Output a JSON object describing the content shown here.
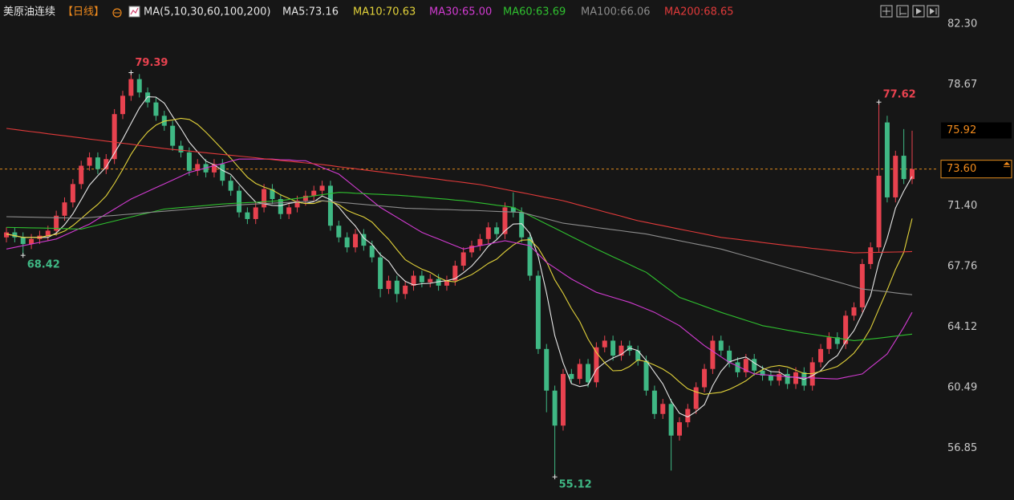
{
  "chart_data": {
    "type": "candlestick",
    "title": "美原油连续",
    "period": "【日线】",
    "ma_title": "MA(5,10,30,60,100,200)",
    "up_color": "#e8424f",
    "down_color": "#3fb884",
    "grid": false,
    "ylim": [
      54.6,
      83.75
    ],
    "yticks": [
      {
        "value": 82.3,
        "label": "82.30"
      },
      78.67,
      {
        "value": 71.4,
        "label": "71.40"
      },
      67.76,
      64.12,
      60.49,
      56.85
    ],
    "highlight_price": 75.92,
    "last_price": {
      "value": 73.6,
      "label": "73.60"
    },
    "open": [
      69.5,
      69.8,
      69.5,
      69.1,
      69.4,
      69.6,
      69.9,
      70.8,
      71.6,
      72.7,
      73.8,
      74.3,
      73.6,
      74.2,
      76.9,
      78.0,
      79.0,
      78.2,
      77.6,
      76.8,
      76.2,
      75.0,
      74.6,
      73.5,
      73.9,
      73.4,
      73.9,
      72.9,
      72.3,
      71.0,
      70.6,
      71.3,
      72.4,
      71.8,
      70.9,
      71.3,
      71.7,
      72.0,
      72.3,
      72.6,
      70.2,
      69.5,
      68.9,
      69.7,
      69.0,
      68.3,
      66.4,
      66.9,
      66.1,
      66.6,
      67.2,
      66.8,
      67.0,
      66.6,
      66.9,
      67.8,
      68.6,
      69.0,
      69.4,
      70.1,
      69.7,
      71.3,
      71.0,
      69.5,
      67.2,
      62.8,
      60.3,
      58.2,
      61.3,
      61.0,
      61.9,
      60.8,
      62.9,
      63.3,
      62.4,
      63.0,
      62.7,
      62.1,
      60.3,
      58.9,
      59.5,
      57.6,
      58.4,
      59.2,
      60.5,
      61.6,
      63.3,
      62.7,
      62.0,
      61.4,
      62.2,
      61.5,
      61.2,
      60.9,
      61.3,
      60.7,
      61.4,
      60.6,
      62.0,
      62.8,
      63.5,
      63.1,
      64.8,
      65.3,
      67.9,
      68.9,
      76.4,
      71.9,
      74.4,
      73.0
    ],
    "high": [
      70.1,
      70.1,
      69.8,
      69.7,
      69.9,
      70.2,
      71.1,
      71.9,
      73.0,
      74.1,
      74.6,
      74.6,
      74.5,
      77.2,
      78.3,
      79.39,
      79.3,
      78.5,
      77.9,
      77.1,
      76.5,
      75.3,
      74.9,
      74.2,
      74.2,
      74.2,
      74.2,
      73.2,
      72.6,
      71.3,
      71.6,
      72.7,
      72.7,
      72.1,
      71.6,
      72.0,
      72.3,
      72.6,
      72.9,
      72.9,
      70.5,
      69.8,
      70.0,
      70.0,
      69.3,
      68.6,
      67.2,
      67.2,
      66.9,
      67.5,
      67.5,
      67.3,
      67.3,
      67.2,
      68.1,
      68.9,
      69.3,
      69.7,
      70.4,
      70.4,
      71.6,
      72.2,
      71.3,
      69.8,
      67.5,
      63.1,
      60.6,
      61.6,
      61.6,
      62.2,
      62.2,
      63.2,
      63.6,
      63.6,
      63.3,
      63.3,
      63.0,
      62.4,
      60.6,
      59.8,
      59.8,
      58.7,
      59.5,
      60.8,
      61.9,
      63.6,
      63.6,
      63.0,
      62.3,
      62.5,
      62.5,
      61.8,
      61.5,
      61.6,
      61.6,
      61.7,
      61.7,
      62.3,
      63.1,
      63.8,
      63.8,
      65.1,
      65.6,
      68.2,
      69.2,
      77.62,
      76.8,
      74.7,
      76.0,
      75.9
    ],
    "low": [
      69.2,
      69.2,
      68.42,
      68.8,
      69.1,
      69.3,
      69.6,
      70.5,
      71.3,
      72.4,
      73.5,
      73.3,
      73.3,
      73.9,
      76.6,
      77.7,
      77.9,
      77.3,
      76.5,
      75.9,
      74.7,
      74.3,
      73.2,
      73.2,
      73.1,
      73.1,
      72.6,
      72.0,
      70.7,
      70.3,
      70.3,
      71.0,
      71.5,
      70.6,
      70.6,
      71.0,
      71.4,
      71.7,
      72.0,
      69.9,
      69.2,
      68.6,
      68.6,
      68.7,
      68.0,
      65.9,
      66.1,
      65.6,
      65.8,
      66.3,
      66.5,
      66.5,
      66.3,
      66.3,
      66.6,
      67.5,
      68.3,
      68.7,
      69.1,
      69.4,
      69.4,
      70.7,
      69.2,
      66.9,
      62.5,
      59.0,
      55.12,
      57.9,
      60.7,
      60.7,
      60.5,
      60.5,
      62.6,
      62.1,
      62.1,
      62.4,
      61.8,
      60.0,
      58.6,
      58.6,
      55.5,
      57.3,
      58.1,
      58.9,
      60.2,
      61.3,
      62.4,
      61.7,
      61.1,
      61.1,
      61.2,
      60.9,
      60.6,
      60.6,
      60.4,
      60.4,
      60.3,
      60.3,
      61.7,
      62.5,
      62.8,
      62.8,
      64.5,
      65.0,
      67.6,
      68.6,
      71.6,
      71.6,
      72.7,
      72.7
    ],
    "close": [
      69.8,
      69.5,
      69.1,
      69.4,
      69.6,
      69.9,
      70.8,
      71.6,
      72.7,
      73.8,
      74.3,
      73.6,
      74.2,
      76.9,
      78.0,
      79.0,
      78.2,
      77.6,
      76.8,
      76.2,
      75.0,
      74.6,
      73.5,
      73.9,
      73.4,
      73.9,
      72.9,
      72.3,
      71.0,
      70.6,
      71.3,
      72.4,
      71.8,
      70.9,
      71.3,
      71.7,
      72.0,
      72.3,
      72.6,
      70.2,
      69.5,
      68.9,
      69.7,
      69.0,
      68.3,
      66.4,
      66.9,
      66.1,
      66.6,
      67.2,
      66.8,
      67.0,
      66.6,
      66.9,
      67.8,
      68.6,
      69.0,
      69.4,
      70.1,
      69.7,
      71.3,
      71.0,
      69.5,
      67.2,
      62.8,
      60.3,
      58.2,
      61.3,
      61.0,
      61.9,
      60.8,
      62.9,
      63.3,
      62.4,
      63.0,
      62.7,
      62.1,
      60.3,
      58.9,
      59.5,
      57.6,
      58.4,
      59.2,
      60.5,
      61.6,
      63.3,
      62.7,
      62.0,
      61.4,
      62.2,
      61.5,
      61.2,
      60.9,
      61.3,
      60.7,
      61.4,
      60.6,
      62.0,
      62.8,
      63.5,
      63.1,
      64.8,
      65.3,
      67.9,
      68.9,
      73.2,
      71.9,
      74.4,
      73.0,
      73.6
    ],
    "series": [
      {
        "name": "MA5:73.16",
        "color": "#e6e6e6",
        "values": [
          69.7,
          69.6,
          69.5,
          69.5,
          69.5,
          69.5,
          69.76,
          70.26,
          70.92,
          71.76,
          72.64,
          73.2,
          73.72,
          74.56,
          75.4,
          76.34,
          77.26,
          77.94,
          77.92,
          77.56,
          76.76,
          76.04,
          75.22,
          74.64,
          74.08,
          73.86,
          73.52,
          73.28,
          72.7,
          72.14,
          71.62,
          71.52,
          71.42,
          71.4,
          71.54,
          71.62,
          71.54,
          71.64,
          71.98,
          71.76,
          71.32,
          70.7,
          70.18,
          69.46,
          69.08,
          68.46,
          68.06,
          67.34,
          66.86,
          66.64,
          66.72,
          66.74,
          66.84,
          66.9,
          67.02,
          67.38,
          67.78,
          68.34,
          68.98,
          69.36,
          69.9,
          70.3,
          70.32,
          69.74,
          68.36,
          66.16,
          63.6,
          61.96,
          60.72,
          60.54,
          60.64,
          61.58,
          61.98,
          62.26,
          62.48,
          62.86,
          62.7,
          62.1,
          61.4,
          60.7,
          59.68,
          58.94,
          58.72,
          59.04,
          59.46,
          60.6,
          61.46,
          62.02,
          62.2,
          62.32,
          61.96,
          61.66,
          61.44,
          61.42,
          61.12,
          61.1,
          60.98,
          61.2,
          61.5,
          62.06,
          62.4,
          63.24,
          63.9,
          64.92,
          66.0,
          68.02,
          69.44,
          71.26,
          72.28,
          73.16
        ]
      },
      {
        "name": "MA10:70.63",
        "color": "#e2d23a",
        "values": [
          69.7,
          69.6,
          69.5,
          69.5,
          69.5,
          69.6,
          69.68,
          69.88,
          70.21,
          70.63,
          71.07,
          71.48,
          71.99,
          72.74,
          73.58,
          74.49,
          75.23,
          75.83,
          76.24,
          76.48,
          76.55,
          76.65,
          76.58,
          76.28,
          75.82,
          75.31,
          74.78,
          74.25,
          73.67,
          73.11,
          72.74,
          72.52,
          72.35,
          72.05,
          71.84,
          71.62,
          71.53,
          71.53,
          71.69,
          71.65,
          71.47,
          71.12,
          70.91,
          70.72,
          70.42,
          69.89,
          69.38,
          68.76,
          68.16,
          67.86,
          67.59,
          67.4,
          67.09,
          66.88,
          66.83,
          67.05,
          67.26,
          67.59,
          67.94,
          68.19,
          68.64,
          69.04,
          69.33,
          69.36,
          68.86,
          68.03,
          66.95,
          66.14,
          65.23,
          64.45,
          63.4,
          62.59,
          61.97,
          61.49,
          61.51,
          61.75,
          62.14,
          62.04,
          61.83,
          61.59,
          61.27,
          60.82,
          60.41,
          60.22,
          60.08,
          60.14,
          60.2,
          60.37,
          60.62,
          60.89,
          61.28,
          61.56,
          61.73,
          61.81,
          61.72,
          61.53,
          61.32,
          61.32,
          61.46,
          61.59,
          61.75,
          62.11,
          62.55,
          63.21,
          64.03,
          65.21,
          66.34,
          67.58,
          68.6,
          70.63
        ]
      },
      {
        "name": "MA30:65.00",
        "color": "#d23bd2",
        "values": [
          68.8,
          68.9,
          69.0,
          69.1,
          69.2,
          69.3,
          69.4,
          69.63,
          69.85,
          70.08,
          70.3,
          70.6,
          70.9,
          71.2,
          71.5,
          71.8,
          72.03,
          72.26,
          72.49,
          72.71,
          72.94,
          73.17,
          73.4,
          73.53,
          73.67,
          73.8,
          73.93,
          74.07,
          74.2,
          74.2,
          74.2,
          74.2,
          74.2,
          74.15,
          74.15,
          74.1,
          74.1,
          73.9,
          73.7,
          73.5,
          73.3,
          72.9,
          72.5,
          72.1,
          71.7,
          71.3,
          71.0,
          70.7,
          70.4,
          70.1,
          69.8,
          69.6,
          69.4,
          69.2,
          69.0,
          68.8,
          68.9,
          69.0,
          69.1,
          69.2,
          69.3,
          69.2,
          69.1,
          69.0,
          68.5,
          68.0,
          67.67,
          67.33,
          67.0,
          66.73,
          66.47,
          66.2,
          66.05,
          65.9,
          65.75,
          65.6,
          65.4,
          65.2,
          65.0,
          64.73,
          64.47,
          64.2,
          63.8,
          63.4,
          63.0,
          62.67,
          62.33,
          62.0,
          61.77,
          61.53,
          61.3,
          61.26,
          61.22,
          61.18,
          61.14,
          61.1,
          61.08,
          61.06,
          61.04,
          61.02,
          61.0,
          61.1,
          61.2,
          61.3,
          61.7,
          62.1,
          62.5,
          63.3,
          64.1,
          65.0
        ]
      },
      {
        "name": "MA60:63.69",
        "color": "#2fc02f",
        "values": [
          70.1,
          70.09,
          70.08,
          70.07,
          70.06,
          70.05,
          70.04,
          70.03,
          70.01,
          70.0,
          70.12,
          70.24,
          70.36,
          70.48,
          70.6,
          70.72,
          70.84,
          70.96,
          71.08,
          71.2,
          71.24,
          71.29,
          71.33,
          71.37,
          71.41,
          71.46,
          71.5,
          71.53,
          71.56,
          71.59,
          71.61,
          71.64,
          71.67,
          71.7,
          71.77,
          71.84,
          71.91,
          71.99,
          72.06,
          72.13,
          72.2,
          72.18,
          72.15,
          72.13,
          72.1,
          72.08,
          72.05,
          72.03,
          72.0,
          71.96,
          71.91,
          71.87,
          71.83,
          71.79,
          71.74,
          71.7,
          71.63,
          71.57,
          71.5,
          71.43,
          71.37,
          71.3,
          71.05,
          70.8,
          70.55,
          70.3,
          70.05,
          69.8,
          69.55,
          69.3,
          69.05,
          68.8,
          68.57,
          68.33,
          68.1,
          67.87,
          67.63,
          67.4,
          67.03,
          66.65,
          66.28,
          65.9,
          65.72,
          65.54,
          65.36,
          65.18,
          65.0,
          64.84,
          64.68,
          64.52,
          64.36,
          64.2,
          64.11,
          64.02,
          63.93,
          63.84,
          63.75,
          63.68,
          63.6,
          63.53,
          63.45,
          63.38,
          63.3,
          63.35,
          63.4,
          63.45,
          63.51,
          63.57,
          63.63,
          63.69
        ]
      },
      {
        "name": "MA100:66.06",
        "color": "#8c8c8c",
        "values": [
          70.74,
          70.73,
          70.72,
          70.71,
          70.7,
          70.69,
          70.68,
          70.67,
          70.66,
          70.65,
          70.69,
          70.73,
          70.78,
          70.82,
          70.86,
          70.9,
          70.94,
          70.99,
          71.03,
          71.07,
          71.11,
          71.15,
          71.2,
          71.24,
          71.28,
          71.32,
          71.36,
          71.41,
          71.45,
          71.48,
          71.5,
          71.53,
          71.55,
          71.58,
          71.6,
          71.63,
          71.65,
          71.68,
          71.7,
          71.66,
          71.61,
          71.57,
          71.52,
          71.48,
          71.43,
          71.39,
          71.34,
          71.3,
          71.25,
          71.23,
          71.22,
          71.2,
          71.18,
          71.17,
          71.15,
          71.13,
          71.12,
          71.1,
          71.08,
          71.06,
          71.04,
          71.02,
          71.0,
          70.87,
          70.74,
          70.61,
          70.48,
          70.35,
          70.29,
          70.22,
          70.16,
          70.09,
          70.03,
          69.96,
          69.9,
          69.83,
          69.77,
          69.7,
          69.6,
          69.5,
          69.4,
          69.3,
          69.2,
          69.1,
          69.0,
          68.9,
          68.8,
          68.66,
          68.52,
          68.38,
          68.24,
          68.1,
          67.96,
          67.82,
          67.68,
          67.54,
          67.4,
          67.26,
          67.11,
          66.97,
          66.83,
          66.69,
          66.54,
          66.4,
          66.34,
          66.29,
          66.23,
          66.17,
          66.11,
          66.06
        ]
      },
      {
        "name": "MA200:68.65",
        "color": "#e03a3a",
        "values": [
          76.04,
          75.98,
          75.91,
          75.85,
          75.79,
          75.72,
          75.66,
          75.6,
          75.53,
          75.47,
          75.4,
          75.34,
          75.28,
          75.21,
          75.15,
          75.09,
          75.02,
          74.96,
          74.9,
          74.83,
          74.78,
          74.73,
          74.68,
          74.63,
          74.58,
          74.53,
          74.48,
          74.43,
          74.38,
          74.33,
          74.28,
          74.22,
          74.17,
          74.12,
          74.07,
          74.02,
          73.97,
          73.92,
          73.87,
          73.81,
          73.74,
          73.68,
          73.62,
          73.55,
          73.49,
          73.43,
          73.36,
          73.3,
          73.24,
          73.17,
          73.11,
          73.05,
          72.99,
          72.92,
          72.86,
          72.8,
          72.73,
          72.67,
          72.57,
          72.48,
          72.38,
          72.28,
          72.19,
          72.09,
          71.99,
          71.89,
          71.8,
          71.7,
          71.57,
          71.43,
          71.3,
          71.17,
          71.03,
          70.9,
          70.77,
          70.63,
          70.5,
          70.4,
          70.3,
          70.2,
          70.1,
          70.0,
          69.9,
          69.8,
          69.7,
          69.6,
          69.5,
          69.44,
          69.38,
          69.32,
          69.26,
          69.19,
          69.13,
          69.07,
          69.01,
          68.95,
          68.9,
          68.84,
          68.79,
          68.73,
          68.68,
          68.63,
          68.57,
          68.58,
          68.59,
          68.6,
          68.61,
          68.62,
          68.63,
          68.65
        ]
      }
    ]
  }
}
